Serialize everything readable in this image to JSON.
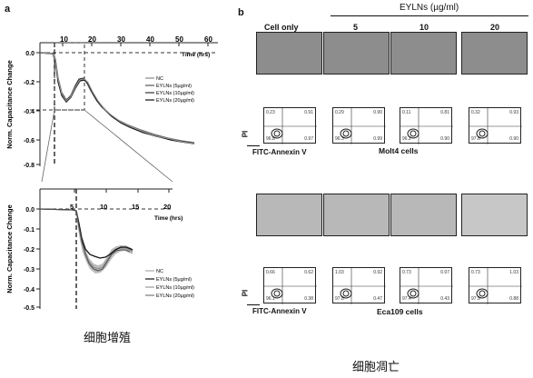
{
  "panel_a": {
    "letter": "a",
    "caption": "细胞增殖",
    "top_chart": {
      "xlabel": "Time (hrs)",
      "ylabel": "Norm. Capacitance Change",
      "xticks": [
        "10",
        "20",
        "30",
        "40",
        "50",
        "60"
      ],
      "yticks": [
        "0.0",
        "-0.2",
        "-0.4",
        "-0.6",
        "-0.8"
      ],
      "legend": [
        "NC",
        "EYLNs (5µg/ml)",
        "EYLNs (10µg/ml)",
        "EYLNs (20µg/ml)"
      ]
    },
    "bottom_chart": {
      "xlabel": "Time (hrs)",
      "ylabel": "Norm. Capacitance Change",
      "xticks": [
        "5",
        "10",
        "15",
        "20"
      ],
      "yticks": [
        "0.0",
        "-0.1",
        "-0.2",
        "-0.3",
        "-0.4",
        "-0.5"
      ],
      "legend": [
        "NC",
        "EYLNs (5µg/ml)",
        "EYLNs (10µg/ml)",
        "EYLNs (20µg/ml)"
      ]
    }
  },
  "panel_b": {
    "letter": "b",
    "caption": "细胞凋亡",
    "eyln_header": "EYLNs (µg/ml)",
    "col_labels": [
      "Cell only",
      "5",
      "10",
      "20"
    ],
    "molt4": {
      "cell_label": "Molt4 cells",
      "ylabel": "PI",
      "xlabel": "FITC-Annexin V",
      "quadrants": [
        [
          "0.23",
          "0.91",
          "96.8",
          "0.97"
        ],
        [
          "0.29",
          "0.90",
          "96.3",
          "0.99"
        ],
        [
          "0.11",
          "0.81",
          "96.2",
          "0.90"
        ],
        [
          "0.32",
          "0.93",
          "97.6",
          "0.90"
        ]
      ]
    },
    "eca109": {
      "cell_label": "Eca109 cells",
      "ylabel": "PI",
      "xlabel": "FITC-Annexin V",
      "quadrants": [
        [
          "0.66",
          "0.62",
          "96.1",
          "0.38"
        ],
        [
          "1.03",
          "0.92",
          "97.8",
          "0.47"
        ],
        [
          "0.73",
          "0.97",
          "97.4",
          "0.43"
        ],
        [
          "0.73",
          "1.03",
          "97.9",
          "0.88"
        ]
      ]
    }
  }
}
